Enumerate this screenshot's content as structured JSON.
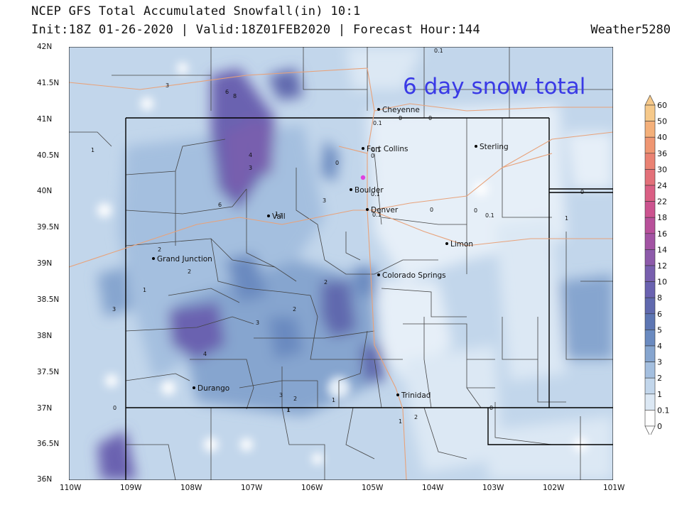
{
  "header": {
    "title": "NCEP GFS Total Accumulated Snowfall(in) 10:1",
    "subtitle": "Init:18Z 01-26-2020 | Valid:18Z01FEB2020 | Forecast Hour:144",
    "credit": "Weather5280"
  },
  "annotation": "6 day snow total",
  "colors": {
    "annotation": "#3a3ae6",
    "roads": "#e8a27a",
    "county_lines": "#444444",
    "state_lines": "#000000",
    "marker": "#e040e0"
  },
  "axes": {
    "lat_labels": [
      "42N",
      "41.5N",
      "41N",
      "40.5N",
      "40N",
      "39.5N",
      "39N",
      "38.5N",
      "38N",
      "37.5N",
      "37N",
      "36.5N",
      "36N"
    ],
    "lon_labels": [
      "110W",
      "109W",
      "108W",
      "107W",
      "106W",
      "105W",
      "104W",
      "103W",
      "102W",
      "101W"
    ]
  },
  "colorbar": {
    "labels": [
      "60",
      "50",
      "40",
      "36",
      "30",
      "24",
      "22",
      "18",
      "16",
      "14",
      "12",
      "10",
      "8",
      "6",
      "5",
      "4",
      "3",
      "2",
      "1",
      "0.1",
      "0"
    ],
    "colors": [
      "#f6c98a",
      "#f4b07a",
      "#ef9672",
      "#ea8273",
      "#e37079",
      "#da5f84",
      "#cc538f",
      "#b8509a",
      "#a253a3",
      "#8d5aaa",
      "#785fae",
      "#6a62b0",
      "#6069ae",
      "#5d76b3",
      "#6a8ac0",
      "#86a5cf",
      "#a4bfdf",
      "#c2d6eb",
      "#dce8f4",
      "#ffffff"
    ]
  },
  "cities": [
    {
      "name": "Cheyenne"
    },
    {
      "name": "Fort Collins"
    },
    {
      "name": "Sterling"
    },
    {
      "name": "Boulder"
    },
    {
      "name": "Denver"
    },
    {
      "name": "Vail"
    },
    {
      "name": "Grand Junction"
    },
    {
      "name": "Limon"
    },
    {
      "name": "Colorado Springs"
    },
    {
      "name": "Durango"
    },
    {
      "name": "Trinidad"
    }
  ],
  "contour_labels": [
    "0.1",
    "3",
    "6",
    "8",
    "4",
    "3",
    "6",
    "1",
    "2",
    "2",
    "1",
    "3",
    "3",
    "2",
    "2",
    "3",
    "4",
    "1",
    "3",
    "2",
    "1",
    "1",
    "0.1",
    "0",
    "0",
    "0.1",
    "0.1",
    "0",
    "0",
    "0.1",
    "0",
    "1",
    "0",
    "2",
    "1",
    "0",
    "0",
    "0",
    "0.1",
    "1",
    "3"
  ]
}
